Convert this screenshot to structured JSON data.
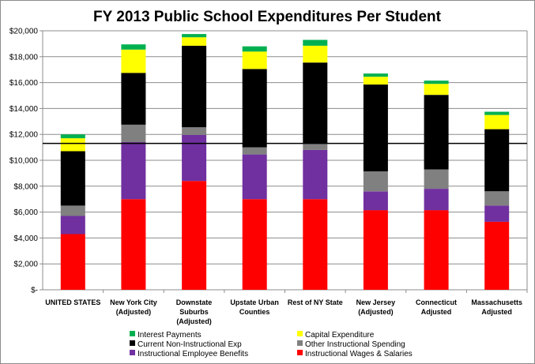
{
  "chart_data": {
    "type": "bar",
    "stacked": true,
    "title": "FY 2013 Public School Expenditures Per Student",
    "xlabel": "",
    "ylabel": "",
    "ylim": [
      0,
      20000
    ],
    "yticks": [
      "$-",
      "$2,000",
      "$4,000",
      "$6,000",
      "$8,000",
      "$10,000",
      "$12,000",
      "$14,000",
      "$16,000",
      "$18,000",
      "$20,000"
    ],
    "ytick_values": [
      0,
      2000,
      4000,
      6000,
      8000,
      10000,
      12000,
      14000,
      16000,
      18000,
      20000
    ],
    "grid": "horizontal",
    "legend_position": "bottom",
    "reference_line": 11300,
    "categories": [
      [
        "UNITED STATES"
      ],
      [
        "New York City",
        "(Adjusted)"
      ],
      [
        "Downstate",
        "Suburbs",
        "(Adjusted)"
      ],
      [
        "Upstate Urban",
        "Counties"
      ],
      [
        "Rest of NY State"
      ],
      [
        "New Jersey",
        "(Adjusted)"
      ],
      [
        "Connecticut",
        "Adjusted"
      ],
      [
        "Massachusetts",
        "Adjusted"
      ]
    ],
    "series": [
      {
        "name": "Instructional Wages & Salaries",
        "color": "#ff0000",
        "values": [
          4300,
          7000,
          8400,
          7000,
          7000,
          6150,
          6150,
          5250
        ]
      },
      {
        "name": "Instructional Employee Benefits",
        "color": "#7030a0",
        "values": [
          1400,
          4400,
          3550,
          3450,
          3800,
          1450,
          1650,
          1250
        ]
      },
      {
        "name": "Other Instructional Spending",
        "color": "#808080",
        "values": [
          800,
          1350,
          600,
          550,
          500,
          1550,
          1500,
          1100
        ]
      },
      {
        "name": "Current Non-Instructional Exp",
        "color": "#000000",
        "values": [
          4200,
          4000,
          6300,
          6050,
          6250,
          6700,
          5750,
          4800
        ]
      },
      {
        "name": "Capital Expenditure",
        "color": "#ffff00",
        "values": [
          1000,
          1800,
          650,
          1350,
          1300,
          600,
          850,
          1100
        ]
      },
      {
        "name": "Interest Payments",
        "color": "#00b050",
        "values": [
          300,
          400,
          250,
          400,
          450,
          250,
          250,
          250
        ]
      }
    ],
    "legend_order": [
      "Interest Payments",
      "Capital Expenditure",
      "Current Non-Instructional Exp",
      "Other Instructional Spending",
      "Instructional Employee Benefits",
      "Instructional Wages & Salaries"
    ]
  }
}
